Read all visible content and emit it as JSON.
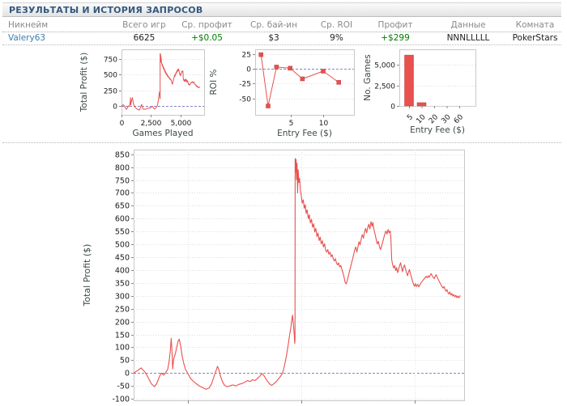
{
  "header": {
    "title": "РЕЗУЛЬТАТЫ И ИСТОРИЯ ЗАПРОСОВ"
  },
  "table": {
    "headers": [
      "Никнейм",
      "Всего игр",
      "Ср. профит",
      "Ср. бай-ин",
      "Ср. ROI",
      "Профит",
      "Данные",
      "Комната"
    ],
    "row": {
      "nickname": "Valery63",
      "total_games": "6625",
      "avg_profit": "+$0.05",
      "avg_buyin": "$3",
      "avg_roi": "9%",
      "profit": "+$299",
      "data_string": "NNNLLLLL",
      "room": "PokerStars"
    }
  },
  "colors": {
    "series_red": "#e8514e",
    "zero_line_blue": "#8585c5",
    "link_blue": "#3b7dad",
    "positive_green": "#007d00",
    "title_blue": "#35587e",
    "axis_title_gray": "#3c4848"
  },
  "chart_data": {
    "profit_series": {
      "name": "Total Profit ($) vs Games Played",
      "points": [
        [
          0,
          0
        ],
        [
          80,
          10
        ],
        [
          150,
          20
        ],
        [
          230,
          4
        ],
        [
          300,
          -20
        ],
        [
          360,
          -42
        ],
        [
          420,
          -53
        ],
        [
          470,
          -40
        ],
        [
          520,
          -15
        ],
        [
          560,
          0
        ],
        [
          610,
          -8
        ],
        [
          650,
          2
        ],
        [
          690,
          14
        ],
        [
          720,
          45
        ],
        [
          745,
          92
        ],
        [
          762,
          135
        ],
        [
          778,
          80
        ],
        [
          792,
          16
        ],
        [
          812,
          55
        ],
        [
          845,
          75
        ],
        [
          875,
          102
        ],
        [
          905,
          126
        ],
        [
          925,
          132
        ],
        [
          950,
          108
        ],
        [
          980,
          70
        ],
        [
          1010,
          42
        ],
        [
          1050,
          15
        ],
        [
          1100,
          -2
        ],
        [
          1150,
          -20
        ],
        [
          1200,
          -30
        ],
        [
          1260,
          -40
        ],
        [
          1330,
          -50
        ],
        [
          1400,
          -57
        ],
        [
          1470,
          -63
        ],
        [
          1530,
          -58
        ],
        [
          1580,
          -42
        ],
        [
          1625,
          -15
        ],
        [
          1675,
          12
        ],
        [
          1700,
          26
        ],
        [
          1730,
          12
        ],
        [
          1760,
          -12
        ],
        [
          1800,
          -33
        ],
        [
          1840,
          -47
        ],
        [
          1890,
          -53
        ],
        [
          1950,
          -50
        ],
        [
          2010,
          -46
        ],
        [
          2070,
          -50
        ],
        [
          2130,
          -44
        ],
        [
          2190,
          -41
        ],
        [
          2250,
          -36
        ],
        [
          2310,
          -29
        ],
        [
          2360,
          -33
        ],
        [
          2410,
          -26
        ],
        [
          2460,
          -29
        ],
        [
          2510,
          -21
        ],
        [
          2560,
          -12
        ],
        [
          2600,
          -2
        ],
        [
          2640,
          -10
        ],
        [
          2680,
          -22
        ],
        [
          2720,
          -33
        ],
        [
          2760,
          -43
        ],
        [
          2800,
          -48
        ],
        [
          2845,
          -41
        ],
        [
          2890,
          -33
        ],
        [
          2935,
          -23
        ],
        [
          2980,
          -12
        ],
        [
          3020,
          0
        ],
        [
          3060,
          30
        ],
        [
          3095,
          65
        ],
        [
          3130,
          105
        ],
        [
          3160,
          145
        ],
        [
          3185,
          175
        ],
        [
          3205,
          205
        ],
        [
          3220,
          225
        ],
        [
          3235,
          196
        ],
        [
          3250,
          165
        ],
        [
          3260,
          138
        ],
        [
          3267,
          115
        ],
        [
          3271,
          130
        ],
        [
          3274,
          833
        ],
        [
          3283,
          780
        ],
        [
          3293,
          830
        ],
        [
          3303,
          752
        ],
        [
          3313,
          815
        ],
        [
          3323,
          700
        ],
        [
          3336,
          790
        ],
        [
          3350,
          740
        ],
        [
          3365,
          756
        ],
        [
          3380,
          710
        ],
        [
          3398,
          690
        ],
        [
          3418,
          660
        ],
        [
          3438,
          673
        ],
        [
          3458,
          640
        ],
        [
          3478,
          654
        ],
        [
          3498,
          620
        ],
        [
          3518,
          634
        ],
        [
          3540,
          600
        ],
        [
          3562,
          615
        ],
        [
          3584,
          583
        ],
        [
          3606,
          597
        ],
        [
          3628,
          566
        ],
        [
          3650,
          580
        ],
        [
          3672,
          548
        ],
        [
          3694,
          562
        ],
        [
          3716,
          530
        ],
        [
          3738,
          544
        ],
        [
          3760,
          515
        ],
        [
          3782,
          528
        ],
        [
          3804,
          502
        ],
        [
          3826,
          514
        ],
        [
          3848,
          490
        ],
        [
          3870,
          502
        ],
        [
          3892,
          478
        ],
        [
          3914,
          470
        ],
        [
          3936,
          480
        ],
        [
          3958,
          462
        ],
        [
          3980,
          470
        ],
        [
          4002,
          452
        ],
        [
          4024,
          460
        ],
        [
          4046,
          444
        ],
        [
          4068,
          435
        ],
        [
          4090,
          444
        ],
        [
          4112,
          428
        ],
        [
          4134,
          420
        ],
        [
          4156,
          428
        ],
        [
          4178,
          412
        ],
        [
          4200,
          418
        ],
        [
          4222,
          402
        ],
        [
          4244,
          390
        ],
        [
          4266,
          372
        ],
        [
          4288,
          352
        ],
        [
          4308,
          346
        ],
        [
          4328,
          358
        ],
        [
          4350,
          374
        ],
        [
          4372,
          392
        ],
        [
          4394,
          410
        ],
        [
          4416,
          426
        ],
        [
          4438,
          443
        ],
        [
          4460,
          460
        ],
        [
          4482,
          478
        ],
        [
          4504,
          490
        ],
        [
          4526,
          470
        ],
        [
          4548,
          492
        ],
        [
          4570,
          510
        ],
        [
          4592,
          498
        ],
        [
          4614,
          522
        ],
        [
          4636,
          538
        ],
        [
          4658,
          524
        ],
        [
          4680,
          548
        ],
        [
          4702,
          562
        ],
        [
          4724,
          545
        ],
        [
          4746,
          565
        ],
        [
          4768,
          578
        ],
        [
          4790,
          560
        ],
        [
          4812,
          588
        ],
        [
          4834,
          570
        ],
        [
          4850,
          585
        ],
        [
          4872,
          558
        ],
        [
          4894,
          540
        ],
        [
          4916,
          520
        ],
        [
          4938,
          502
        ],
        [
          4960,
          512
        ],
        [
          4982,
          492
        ],
        [
          5004,
          480
        ],
        [
          5026,
          492
        ],
        [
          5048,
          508
        ],
        [
          5070,
          524
        ],
        [
          5092,
          540
        ],
        [
          5114,
          552
        ],
        [
          5136,
          540
        ],
        [
          5158,
          558
        ],
        [
          5180,
          545
        ],
        [
          5200,
          552
        ],
        [
          5215,
          522
        ],
        [
          5232,
          440
        ],
        [
          5252,
          420
        ],
        [
          5272,
          408
        ],
        [
          5292,
          418
        ],
        [
          5312,
          398
        ],
        [
          5332,
          410
        ],
        [
          5352,
          390
        ],
        [
          5372,
          402
        ],
        [
          5392,
          418
        ],
        [
          5412,
          428
        ],
        [
          5432,
          410
        ],
        [
          5452,
          394
        ],
        [
          5472,
          412
        ],
        [
          5492,
          420
        ],
        [
          5512,
          404
        ],
        [
          5532,
          390
        ],
        [
          5552,
          378
        ],
        [
          5572,
          392
        ],
        [
          5592,
          402
        ],
        [
          5612,
          386
        ],
        [
          5632,
          372
        ],
        [
          5652,
          358
        ],
        [
          5672,
          346
        ],
        [
          5692,
          337
        ],
        [
          5712,
          347
        ],
        [
          5732,
          336
        ],
        [
          5757,
          345
        ],
        [
          5782,
          335
        ],
        [
          5807,
          344
        ],
        [
          5832,
          352
        ],
        [
          5857,
          358
        ],
        [
          5882,
          364
        ],
        [
          5907,
          370
        ],
        [
          5932,
          376
        ],
        [
          5952,
          370
        ],
        [
          5972,
          378
        ],
        [
          5992,
          372
        ],
        [
          6012,
          380
        ],
        [
          6032,
          386
        ],
        [
          6052,
          378
        ],
        [
          6072,
          372
        ],
        [
          6092,
          367
        ],
        [
          6112,
          375
        ],
        [
          6132,
          382
        ],
        [
          6152,
          374
        ],
        [
          6172,
          365
        ],
        [
          6192,
          357
        ],
        [
          6212,
          350
        ],
        [
          6232,
          343
        ],
        [
          6252,
          336
        ],
        [
          6272,
          330
        ],
        [
          6292,
          336
        ],
        [
          6312,
          325
        ],
        [
          6332,
          318
        ],
        [
          6352,
          324
        ],
        [
          6372,
          313
        ],
        [
          6392,
          307
        ],
        [
          6412,
          315
        ],
        [
          6432,
          303
        ],
        [
          6452,
          309
        ],
        [
          6472,
          299
        ],
        [
          6492,
          305
        ],
        [
          6512,
          296
        ],
        [
          6532,
          302
        ],
        [
          6552,
          293
        ],
        [
          6572,
          299
        ],
        [
          6592,
          292
        ],
        [
          6612,
          300
        ],
        [
          6625,
          298
        ]
      ]
    },
    "charts": [
      {
        "id": "mini_profit",
        "type": "line",
        "xlabel": "Games Played",
        "ylabel": "Total Profit ($)",
        "xlim": [
          0,
          7000
        ],
        "ylim": [
          -140,
          900
        ],
        "xticks": [
          [
            0,
            "0"
          ],
          [
            2500,
            "2,500"
          ],
          [
            5000,
            "5,000"
          ]
        ],
        "yticks": [
          [
            0,
            "0"
          ],
          [
            250,
            "250"
          ],
          [
            500,
            "500"
          ],
          [
            750,
            "750"
          ]
        ],
        "series": "profit_series",
        "zero_line": true,
        "grid": true,
        "legend": "none"
      },
      {
        "id": "roi_by_fee",
        "type": "line",
        "xlabel": "Entry Fee ($)",
        "ylabel": "ROI %",
        "xlim": [
          -0.5,
          14.75
        ],
        "ylim": [
          -78,
          33
        ],
        "xticks": [
          [
            5,
            "5"
          ],
          [
            10,
            "10"
          ]
        ],
        "yticks": [
          [
            25,
            "25"
          ],
          [
            0,
            "0"
          ],
          [
            -25,
            "-25"
          ],
          [
            -50,
            "-50"
          ]
        ],
        "x": [
          0.4,
          1.5,
          2.8,
          4.9,
          6.8,
          10,
          12.4
        ],
        "y": [
          24,
          -63,
          3,
          1,
          -17,
          -4,
          -23
        ],
        "markers": "square",
        "zero_line": true,
        "grid": true,
        "legend": "none"
      },
      {
        "id": "games_by_fee",
        "type": "bar",
        "xlabel": "Entry Fee ($)",
        "ylabel": "No. Games",
        "categories": [
          "5",
          "10",
          "20",
          "30",
          "60"
        ],
        "values": [
          6200,
          400,
          30,
          15,
          10
        ],
        "ylim": [
          0,
          6900
        ],
        "yticks": [
          [
            0,
            "0"
          ],
          [
            2500,
            "2,500"
          ],
          [
            5000,
            "5,000"
          ]
        ],
        "grid": true,
        "legend": "none"
      },
      {
        "id": "main_profit",
        "type": "line",
        "xlabel": "",
        "ylabel": "Total Profit ($)",
        "xlim": [
          0,
          6700
        ],
        "ylim": [
          -106,
          868
        ],
        "yticks": [
          [
            850,
            "850"
          ],
          [
            800,
            "800"
          ],
          [
            750,
            "750"
          ],
          [
            700,
            "700"
          ],
          [
            650,
            "650"
          ],
          [
            600,
            "600"
          ],
          [
            550,
            "550"
          ],
          [
            500,
            "500"
          ],
          [
            450,
            "450"
          ],
          [
            400,
            "400"
          ],
          [
            350,
            "350"
          ],
          [
            300,
            "300"
          ],
          [
            250,
            "250"
          ],
          [
            200,
            "200"
          ],
          [
            150,
            "150"
          ],
          [
            100,
            "100"
          ],
          [
            50,
            "50"
          ],
          [
            0,
            "0"
          ],
          [
            -50,
            "-50"
          ],
          [
            -100,
            "-100"
          ]
        ],
        "xgrid": [
          1100,
          3400,
          5700
        ],
        "series": "profit_series",
        "zero_line": true,
        "grid": true,
        "legend": "none"
      }
    ]
  }
}
